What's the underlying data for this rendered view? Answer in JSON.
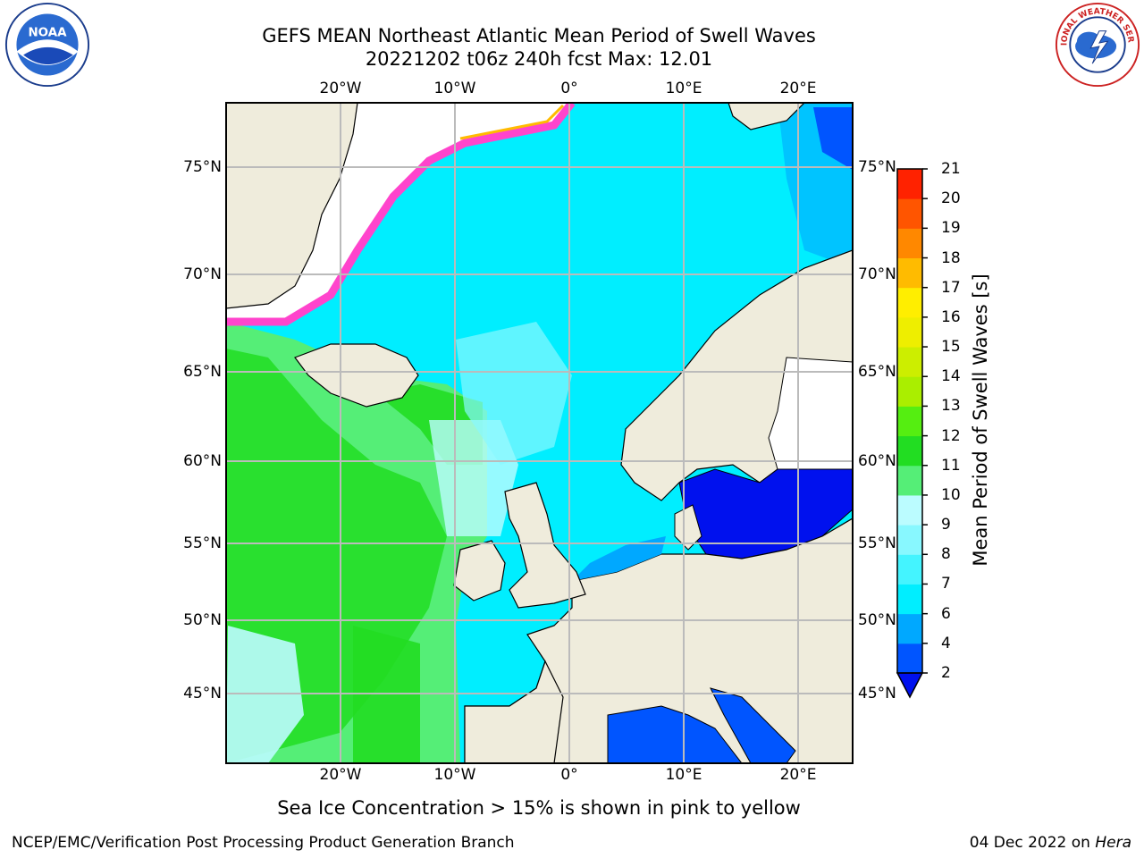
{
  "title_line1": "GEFS MEAN Northeast Atlantic Mean Period of Swell Waves",
  "title_line2": "20221202 t06z 240h fcst   Max: 12.01",
  "colorbar": {
    "title": "Mean Period of Swell Waves [s]",
    "levels": [
      "2",
      "4",
      "6",
      "7",
      "8",
      "9",
      "10",
      "11",
      "12",
      "13",
      "14",
      "15",
      "16",
      "17",
      "18",
      "19",
      "20",
      "21"
    ],
    "colors": [
      "#0055ff",
      "#00a8ff",
      "#00eeff",
      "#44f4ff",
      "#88f8ff",
      "#bbfcff",
      "#55ee77",
      "#22dd22",
      "#55ee11",
      "#aaee00",
      "#ccee00",
      "#eeee00",
      "#ffee00",
      "#ffbb00",
      "#ff8800",
      "#ff5500",
      "#ff2200"
    ],
    "under_color": "#0011ee"
  },
  "axes": {
    "lon_labels": [
      "20°W",
      "10°W",
      "0°",
      "10°E",
      "20°E"
    ],
    "lat_labels": [
      "75°N",
      "70°N",
      "65°N",
      "60°N",
      "55°N",
      "50°N",
      "45°N"
    ]
  },
  "ice_note": "Sea Ice Concentration > 15% is shown in pink to yellow",
  "footer_left": "NCEP/EMC/Verification Post Processing Product Generation Branch",
  "footer_right_date": "04 Dec 2022 on ",
  "footer_right_machine": "Hera",
  "logos": {
    "noaa_text": "NOAA",
    "nws_text": "NATIONAL WEATHER SERVICE",
    "noaa_icon": "noaa-logo-icon",
    "nws_icon": "nws-logo-icon"
  },
  "colors": {
    "land": "#efecdc",
    "ice_edge": "#ff44cc",
    "grid": "#bbbbbb"
  }
}
